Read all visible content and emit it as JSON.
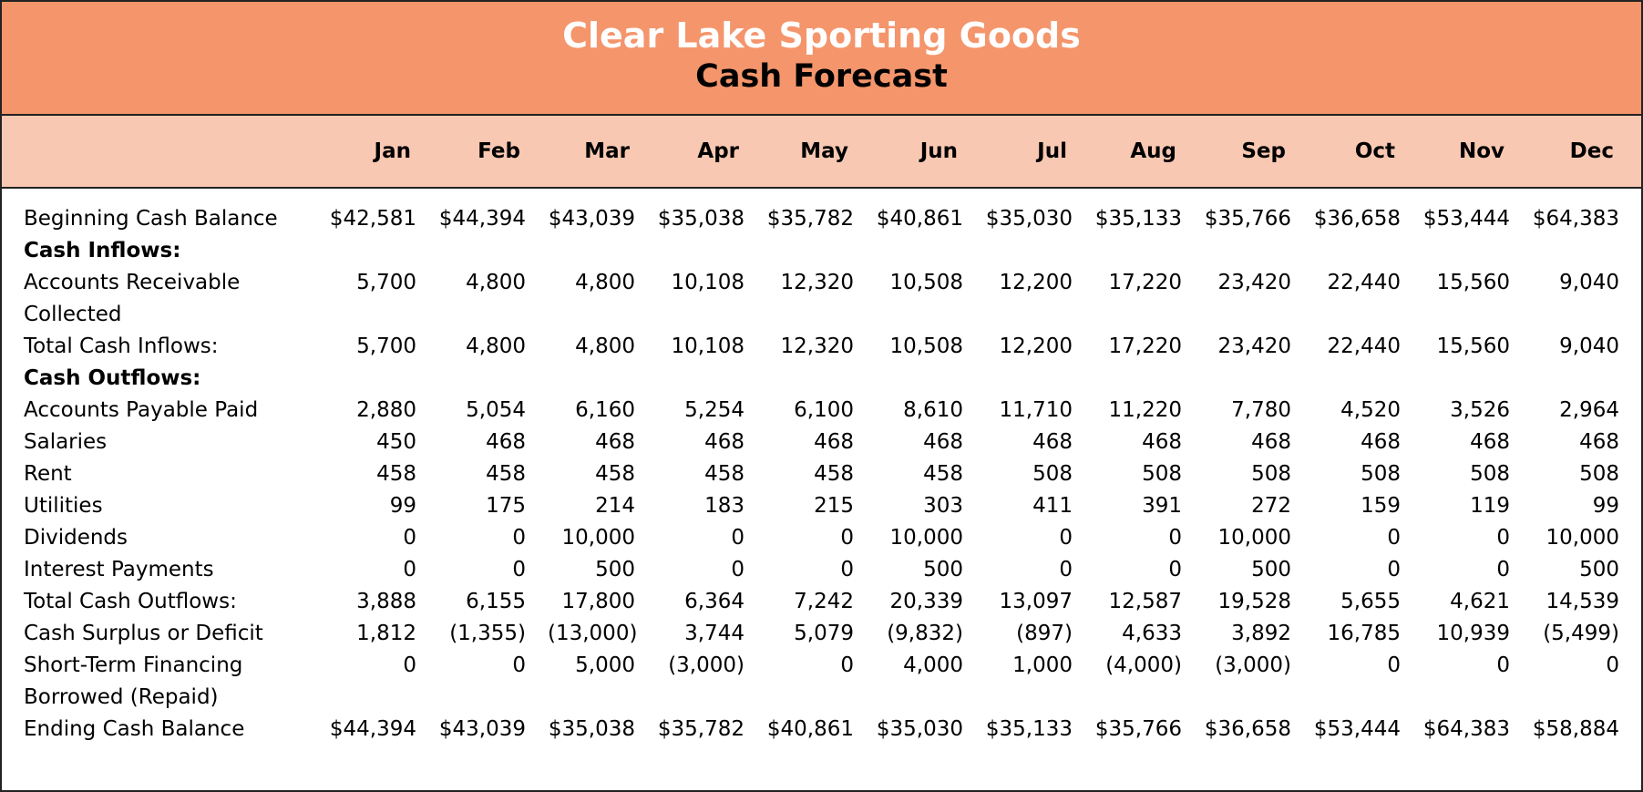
{
  "header": {
    "title": "Clear Lake Sporting Goods",
    "subtitle": "Cash Forecast"
  },
  "table": {
    "columns": [
      "Jan",
      "Feb",
      "Mar",
      "Apr",
      "May",
      "Jun",
      "Jul",
      "Aug",
      "Sep",
      "Oct",
      "Nov",
      "Dec"
    ],
    "rows": [
      {
        "label": "Beginning Cash Balance",
        "values": [
          "$42,581",
          "$44,394",
          "$43,039",
          "$35,038",
          "$35,782",
          "$40,861",
          "$35,030",
          "$35,133",
          "$35,766",
          "$36,658",
          "$53,444",
          "$64,383"
        ]
      },
      {
        "label": "Cash Inflows:",
        "bold": true,
        "values": []
      },
      {
        "label": "Accounts Receivable Collected",
        "values": [
          "5,700",
          "4,800",
          "4,800",
          "10,108",
          "12,320",
          "10,508",
          "12,200",
          "17,220",
          "23,420",
          "22,440",
          "15,560",
          "9,040"
        ]
      },
      {
        "label": "Total Cash Inflows:",
        "values": [
          "5,700",
          "4,800",
          "4,800",
          "10,108",
          "12,320",
          "10,508",
          "12,200",
          "17,220",
          "23,420",
          "22,440",
          "15,560",
          "9,040"
        ]
      },
      {
        "label": "Cash Outflows:",
        "bold": true,
        "values": []
      },
      {
        "label": "Accounts Payable Paid",
        "values": [
          "2,880",
          "5,054",
          "6,160",
          "5,254",
          "6,100",
          "8,610",
          "11,710",
          "11,220",
          "7,780",
          "4,520",
          "3,526",
          "2,964"
        ]
      },
      {
        "label": "Salaries",
        "values": [
          "450",
          "468",
          "468",
          "468",
          "468",
          "468",
          "468",
          "468",
          "468",
          "468",
          "468",
          "468"
        ]
      },
      {
        "label": "Rent",
        "values": [
          "458",
          "458",
          "458",
          "458",
          "458",
          "458",
          "508",
          "508",
          "508",
          "508",
          "508",
          "508"
        ]
      },
      {
        "label": "Utilities",
        "values": [
          "99",
          "175",
          "214",
          "183",
          "215",
          "303",
          "411",
          "391",
          "272",
          "159",
          "119",
          "99"
        ]
      },
      {
        "label": "Dividends",
        "values": [
          "0",
          "0",
          "10,000",
          "0",
          "0",
          "10,000",
          "0",
          "0",
          "10,000",
          "0",
          "0",
          "10,000"
        ]
      },
      {
        "label": "Interest Payments",
        "values": [
          "0",
          "0",
          "500",
          "0",
          "0",
          "500",
          "0",
          "0",
          "500",
          "0",
          "0",
          "500"
        ]
      },
      {
        "label": "Total Cash Outflows:",
        "values": [
          "3,888",
          "6,155",
          "17,800",
          "6,364",
          "7,242",
          "20,339",
          "13,097",
          "12,587",
          "19,528",
          "5,655",
          "4,621",
          "14,539"
        ]
      },
      {
        "label": "Cash Surplus or Deficit",
        "values": [
          "1,812",
          "(1,355)",
          "(13,000)",
          "3,744",
          "5,079",
          "(9,832)",
          "(897)",
          "4,633",
          "3,892",
          "16,785",
          "10,939",
          "(5,499)"
        ]
      },
      {
        "label": "Short-Term Financing Borrowed (Repaid)",
        "values": [
          "0",
          "0",
          "5,000",
          "(3,000)",
          "0",
          "4,000",
          "1,000",
          "(4,000)",
          "(3,000)",
          "0",
          "0",
          "0"
        ]
      },
      {
        "label": "Ending Cash Balance",
        "values": [
          "$44,394",
          "$43,039",
          "$35,038",
          "$35,782",
          "$40,861",
          "$35,030",
          "$35,133",
          "$35,766",
          "$36,658",
          "$53,444",
          "$64,383",
          "$58,884"
        ]
      }
    ]
  }
}
